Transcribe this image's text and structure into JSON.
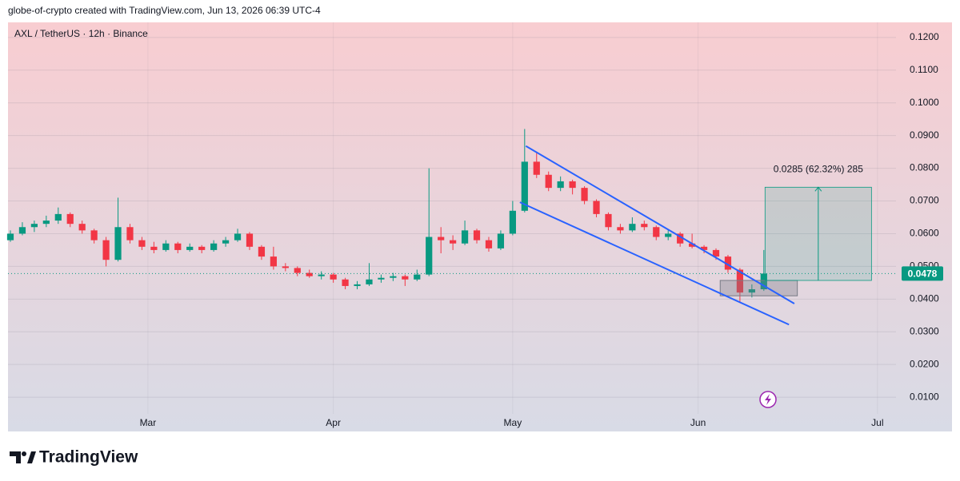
{
  "header": "globe-of-crypto created with TradingView.com, Jun 13, 2026 06:39 UTC-4",
  "brand": "TradingView",
  "chart_data": {
    "type": "candlestick",
    "title": "AXL / TetherUS · 12h · Binance",
    "x": [
      0,
      2,
      4,
      6,
      8,
      10,
      12,
      14,
      16,
      18,
      20,
      22,
      24,
      26,
      28,
      30,
      32,
      34,
      36,
      38,
      40,
      42,
      44,
      46,
      48,
      50,
      52,
      54,
      56,
      58,
      60,
      62,
      64,
      66,
      68,
      70,
      72,
      74,
      76,
      78,
      80,
      82,
      84,
      86,
      88,
      90,
      92,
      94,
      96,
      98,
      100,
      102,
      104,
      106,
      108,
      110,
      112,
      114,
      116,
      118,
      120,
      122,
      124,
      126
    ],
    "open": [
      0.058,
      0.06,
      0.062,
      0.063,
      0.064,
      0.066,
      0.063,
      0.061,
      0.058,
      0.052,
      0.062,
      0.058,
      0.056,
      0.055,
      0.057,
      0.055,
      0.056,
      0.055,
      0.057,
      0.058,
      0.06,
      0.056,
      0.053,
      0.05,
      0.0495,
      0.048,
      0.047,
      0.0475,
      0.046,
      0.044,
      0.0445,
      0.046,
      0.0465,
      0.047,
      0.046,
      0.0475,
      0.059,
      0.058,
      0.057,
      0.061,
      0.058,
      0.0555,
      0.06,
      0.067,
      0.082,
      0.078,
      0.074,
      0.076,
      0.074,
      0.07,
      0.066,
      0.062,
      0.061,
      0.063,
      0.062,
      0.059,
      0.06,
      0.057,
      0.056,
      0.055,
      0.053,
      0.049,
      0.042,
      0.043
    ],
    "high": [
      0.061,
      0.0635,
      0.064,
      0.0655,
      0.068,
      0.0665,
      0.064,
      0.0615,
      0.059,
      0.071,
      0.063,
      0.059,
      0.0575,
      0.058,
      0.0575,
      0.057,
      0.0565,
      0.058,
      0.059,
      0.0615,
      0.0605,
      0.0565,
      0.056,
      0.051,
      0.05,
      0.049,
      0.0485,
      0.048,
      0.0465,
      0.0455,
      0.051,
      0.0475,
      0.048,
      0.0475,
      0.049,
      0.08,
      0.062,
      0.0595,
      0.064,
      0.0615,
      0.059,
      0.061,
      0.07,
      0.092,
      0.085,
      0.079,
      0.0775,
      0.0765,
      0.0745,
      0.0705,
      0.0665,
      0.063,
      0.065,
      0.064,
      0.0625,
      0.061,
      0.0605,
      0.06,
      0.0565,
      0.0555,
      0.0535,
      0.0495,
      0.0445,
      0.055
    ],
    "low": [
      0.0575,
      0.0595,
      0.0605,
      0.062,
      0.063,
      0.062,
      0.06,
      0.057,
      0.05,
      0.0515,
      0.057,
      0.055,
      0.054,
      0.0545,
      0.054,
      0.0545,
      0.054,
      0.0545,
      0.056,
      0.0575,
      0.055,
      0.052,
      0.049,
      0.0485,
      0.047,
      0.0465,
      0.046,
      0.045,
      0.043,
      0.043,
      0.044,
      0.045,
      0.0455,
      0.044,
      0.0455,
      0.047,
      0.054,
      0.055,
      0.0565,
      0.057,
      0.0545,
      0.055,
      0.0595,
      0.0665,
      0.077,
      0.073,
      0.073,
      0.072,
      0.069,
      0.065,
      0.061,
      0.06,
      0.0605,
      0.061,
      0.058,
      0.058,
      0.056,
      0.0555,
      0.054,
      0.052,
      0.048,
      0.039,
      0.0405,
      0.0425
    ],
    "close": [
      0.06,
      0.062,
      0.063,
      0.064,
      0.066,
      0.063,
      0.061,
      0.058,
      0.052,
      0.062,
      0.058,
      0.056,
      0.055,
      0.057,
      0.055,
      0.056,
      0.055,
      0.057,
      0.058,
      0.06,
      0.056,
      0.053,
      0.05,
      0.0495,
      0.048,
      0.047,
      0.0475,
      0.046,
      0.044,
      0.0445,
      0.046,
      0.0465,
      0.047,
      0.046,
      0.0475,
      0.059,
      0.058,
      0.057,
      0.061,
      0.058,
      0.0555,
      0.06,
      0.067,
      0.082,
      0.078,
      0.074,
      0.076,
      0.074,
      0.07,
      0.066,
      0.062,
      0.061,
      0.063,
      0.062,
      0.059,
      0.06,
      0.057,
      0.056,
      0.055,
      0.053,
      0.049,
      0.042,
      0.043,
      0.0478
    ],
    "up_color": "#089981",
    "down_color": "#f23645",
    "xlim": [
      -0.4,
      148.1
    ],
    "xticks": [
      {
        "value": 23,
        "label": "Mar"
      },
      {
        "value": 54,
        "label": "Apr"
      },
      {
        "value": 84,
        "label": "May"
      },
      {
        "value": 115,
        "label": "Jun"
      },
      {
        "value": 145,
        "label": "Jul"
      }
    ],
    "ylim": [
      0.0049,
      0.1246
    ],
    "yticks": [
      {
        "value": 0.01,
        "label": "0.0100"
      },
      {
        "value": 0.02,
        "label": "0.0200"
      },
      {
        "value": 0.03,
        "label": "0.0300"
      },
      {
        "value": 0.04,
        "label": "0.0400"
      },
      {
        "value": 0.05,
        "label": "0.0500"
      },
      {
        "value": 0.06,
        "label": "0.0600"
      },
      {
        "value": 0.07,
        "label": "0.0700"
      },
      {
        "value": 0.08,
        "label": "0.0800"
      },
      {
        "value": 0.09,
        "label": "0.0900"
      },
      {
        "value": 0.1,
        "label": "0.1000"
      },
      {
        "value": 0.11,
        "label": "0.1100"
      },
      {
        "value": 0.12,
        "label": "0.1200"
      }
    ],
    "grid": true,
    "last_price": {
      "value": 0.0478,
      "label": "0.0478"
    },
    "trendlines": [
      {
        "x": [
          86.2,
          131.1
        ],
        "y": [
          0.0868,
          0.0386
        ],
        "color": "#2962ff"
      },
      {
        "x": [
          85.2,
          130.2
        ],
        "y": [
          0.0696,
          0.0322
        ],
        "color": "#2962ff"
      }
    ],
    "range_box": {
      "x": [
        118.7,
        131.6
      ],
      "y": [
        0.041,
        0.0457
      ]
    },
    "measure": {
      "x": [
        126.2,
        144
      ],
      "y": [
        0.0457,
        0.0742
      ],
      "label": "0.0285 (62.32%) 285",
      "color": "#089981"
    }
  }
}
